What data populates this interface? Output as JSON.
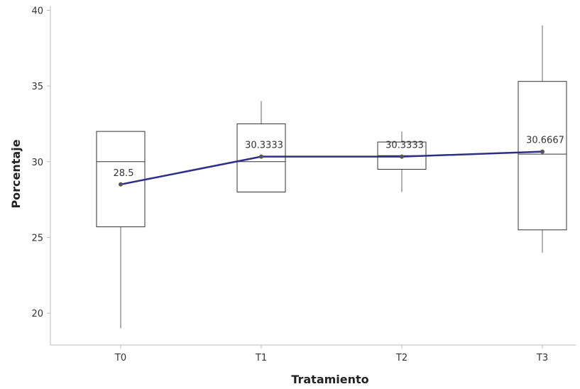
{
  "chart_data": {
    "type": "boxplot",
    "xlabel": "Tratamiento",
    "ylabel": "Porcentaje",
    "ylim": [
      17.9,
      40.3
    ],
    "yticks": [
      20,
      25,
      30,
      35,
      40
    ],
    "grid": false,
    "categories": [
      "T0",
      "T1",
      "T2",
      "T3"
    ],
    "boxes": [
      {
        "category": "T0",
        "whisker_low": 19,
        "q1": 25.7,
        "median": 30,
        "q3": 32,
        "whisker_high": 32
      },
      {
        "category": "T1",
        "whisker_low": 28,
        "q1": 28,
        "median": 30,
        "q3": 32.5,
        "whisker_high": 34
      },
      {
        "category": "T2",
        "whisker_low": 28,
        "q1": 29.5,
        "median": 30.4,
        "q3": 31.3,
        "whisker_high": 32
      },
      {
        "category": "T3",
        "whisker_low": 24,
        "q1": 25.5,
        "median": 30.5,
        "q3": 35.3,
        "whisker_high": 39
      }
    ],
    "means": {
      "values": [
        28.5,
        30.3333,
        30.3333,
        30.6667
      ],
      "labels": [
        "28.5",
        "30.3333",
        "30.3333",
        "30.6667"
      ],
      "line_color": "#2e2e8a"
    }
  }
}
